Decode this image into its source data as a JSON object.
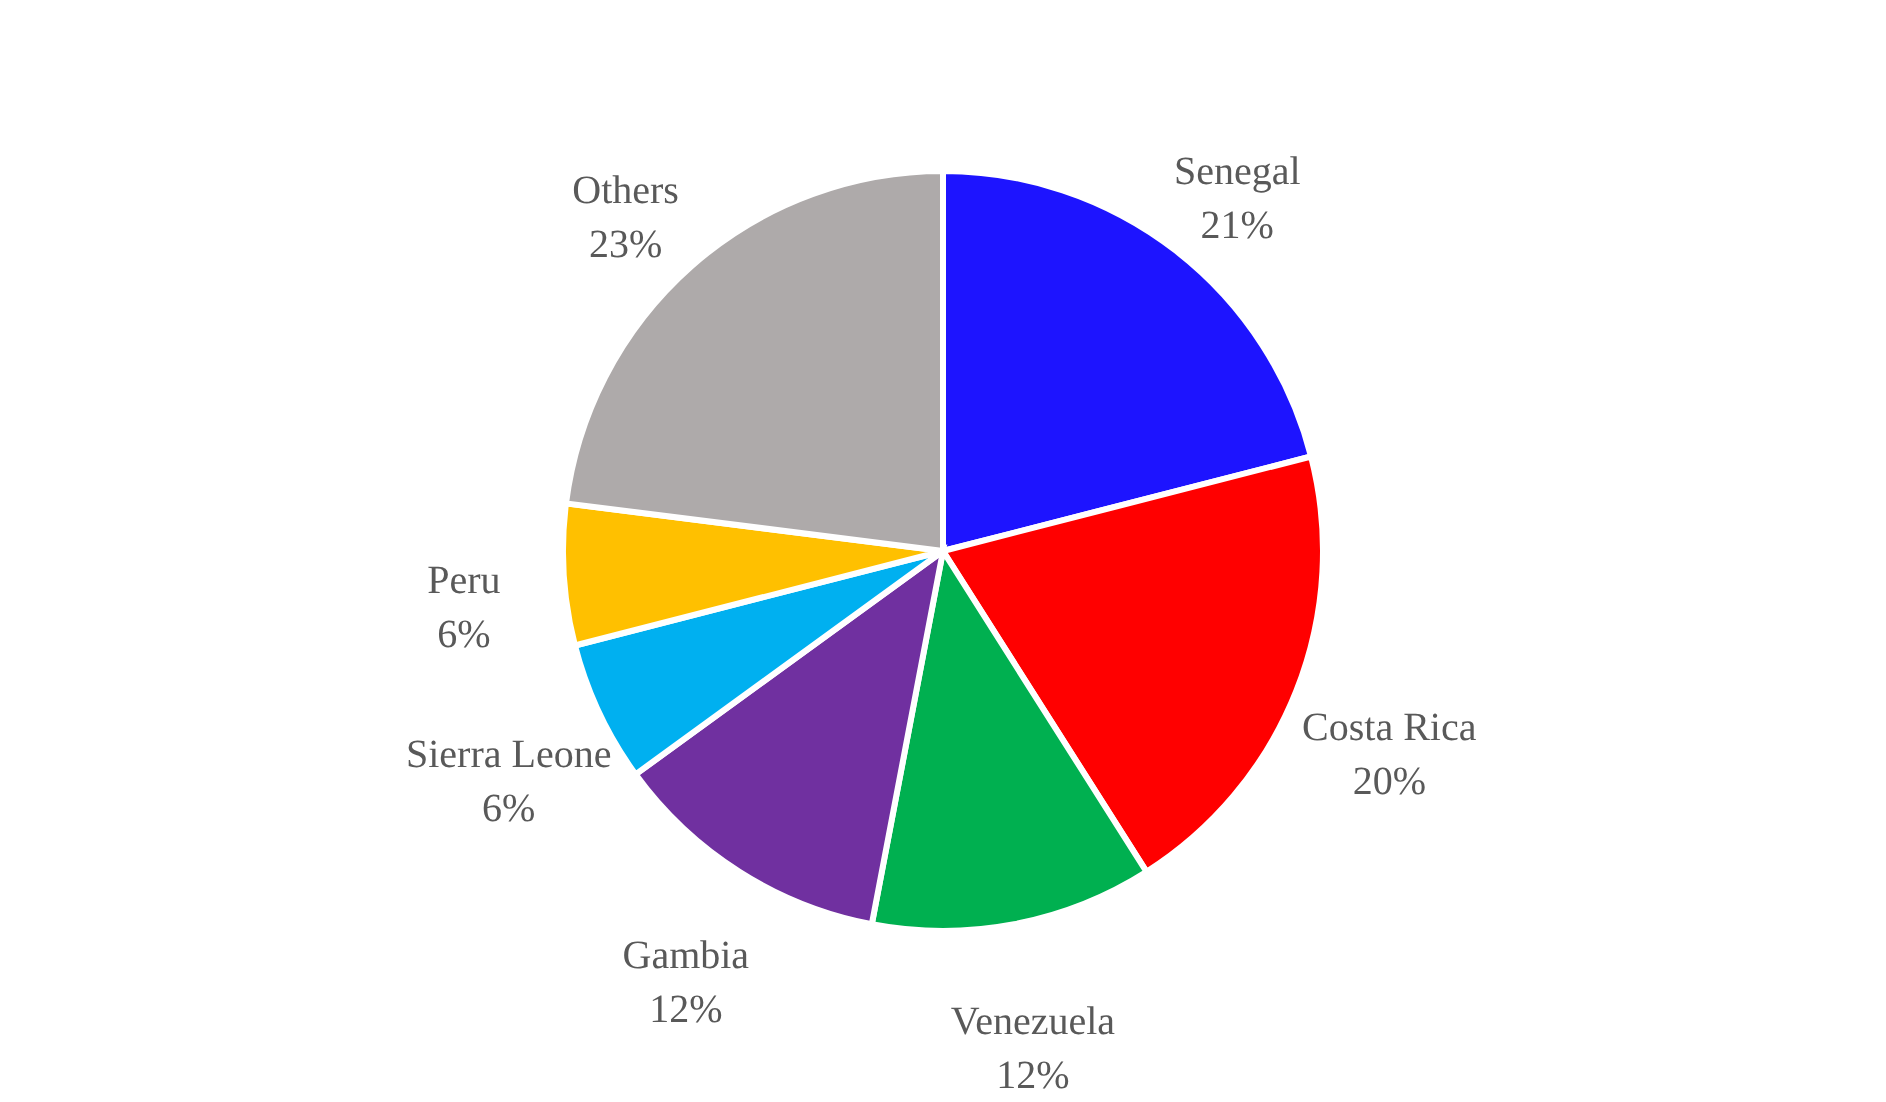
{
  "chart_data": {
    "type": "pie",
    "categories": [
      "Senegal",
      "Costa Rica",
      "Venezuela",
      "Gambia",
      "Sierra Leone",
      "Peru",
      "Others"
    ],
    "values": [
      21,
      20,
      12,
      12,
      6,
      6,
      23
    ],
    "colors": [
      "#1d14ff",
      "#ff0000",
      "#00b050",
      "#7030a0",
      "#00b0f0",
      "#ffc000",
      "#aeaaaa"
    ],
    "value_labels": [
      "21%",
      "20%",
      "12%",
      "12%",
      "6%",
      "6%",
      "23%"
    ]
  }
}
